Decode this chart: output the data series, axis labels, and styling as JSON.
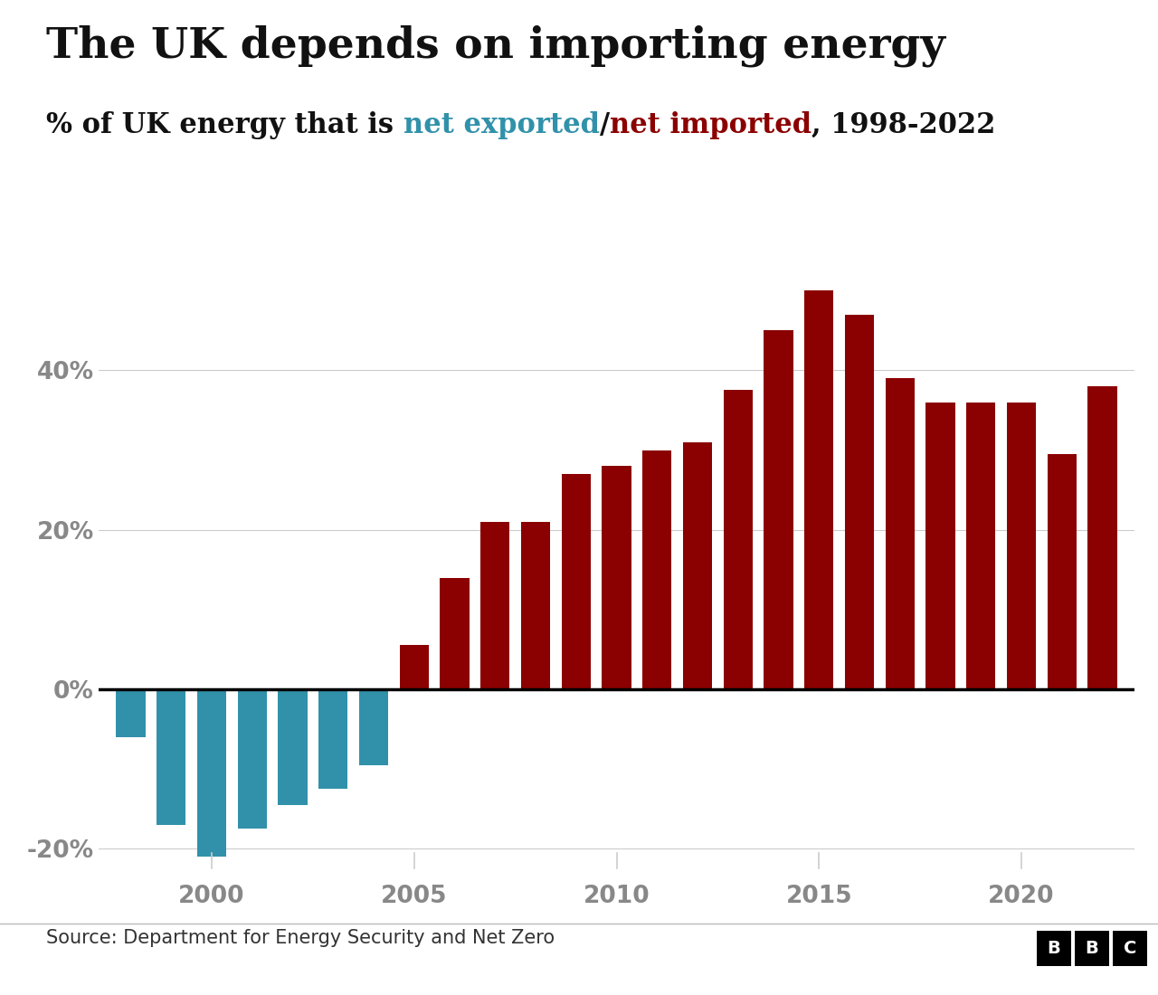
{
  "title": "The UK depends on importing energy",
  "subtitle_plain": "% of UK energy that is ",
  "subtitle_exported": "net exported",
  "subtitle_slash": "/",
  "subtitle_imported": "net imported",
  "subtitle_end": ", 1998-2022",
  "years": [
    1998,
    1999,
    2000,
    2001,
    2002,
    2003,
    2004,
    2005,
    2006,
    2007,
    2008,
    2009,
    2010,
    2011,
    2012,
    2013,
    2014,
    2015,
    2016,
    2017,
    2018,
    2019,
    2020,
    2021,
    2022
  ],
  "values": [
    -6.0,
    -17.0,
    -21.0,
    -17.5,
    -14.5,
    -12.5,
    -9.5,
    5.5,
    14.0,
    21.0,
    21.0,
    27.0,
    28.0,
    30.0,
    31.0,
    37.5,
    45.0,
    50.0,
    47.0,
    39.0,
    36.0,
    36.0,
    36.0,
    29.5,
    38.0
  ],
  "color_positive": "#8B0000",
  "color_negative": "#3191AA",
  "color_exported": "#3191AA",
  "color_imported": "#8B0000",
  "tick_color": "#888888",
  "source_text": "Source: Department for Energy Security and Net Zero",
  "ylim_min": -24,
  "ylim_max": 54,
  "background_color": "#ffffff",
  "grid_color": "#cccccc",
  "zero_line_color": "#000000",
  "title_fontsize": 34,
  "subtitle_fontsize": 22,
  "tick_fontsize": 19,
  "source_fontsize": 15,
  "bar_width": 0.72,
  "xtick_positions": [
    2000,
    2005,
    2010,
    2015,
    2020
  ],
  "ytick_positions": [
    -20,
    0,
    20,
    40
  ],
  "ytick_labels": [
    "-20%",
    "0%",
    "20%",
    "40%"
  ]
}
